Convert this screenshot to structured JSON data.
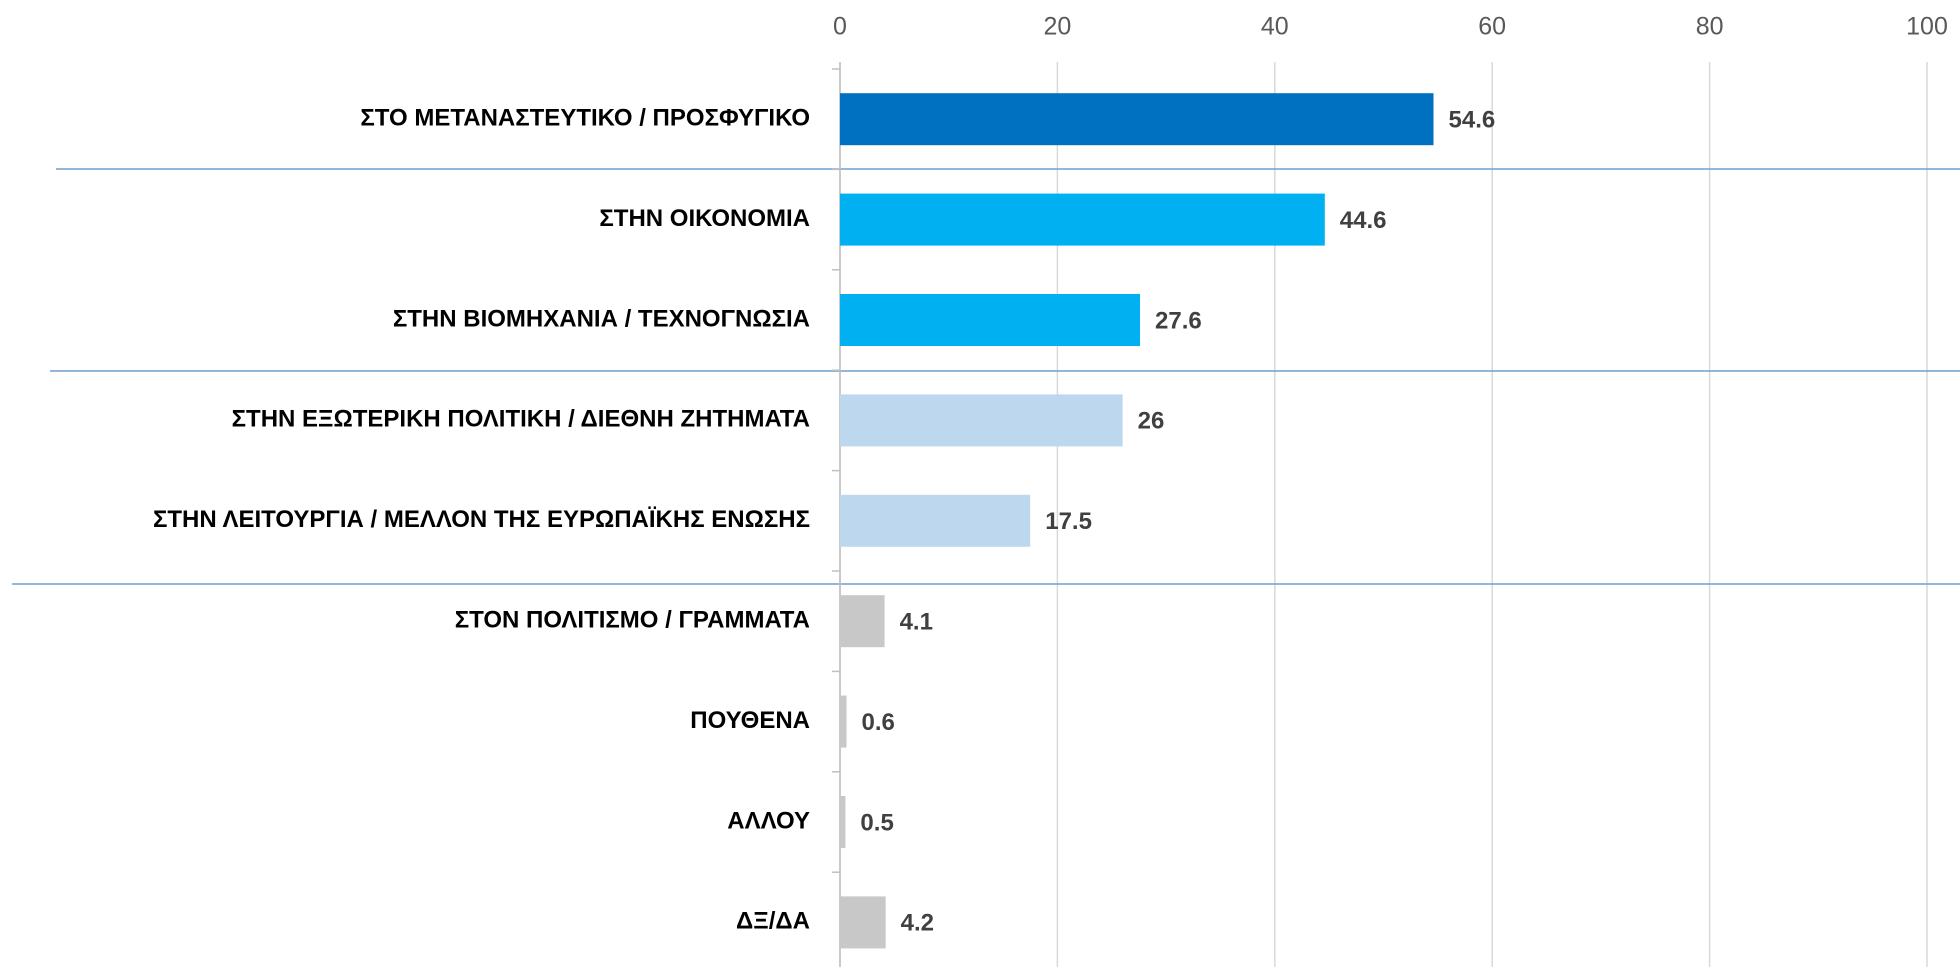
{
  "chart_data": {
    "type": "bar",
    "orientation": "horizontal",
    "categories": [
      "ΣΤΟ ΜΕΤΑΝΑΣΤΕΥΤΙΚΟ / ΠΡΟΣΦΥΓΙΚΟ",
      "ΣΤΗΝ ΟΙΚΟΝΟΜΙΑ",
      "ΣΤΗΝ ΒΙΟΜΗΧΑΝΙΑ / ΤΕΧΝΟΓΝΩΣΙΑ",
      "ΣΤΗΝ ΕΞΩΤΕΡΙΚΗ ΠΟΛΙΤΙΚΗ / ΔΙΕΘΝΗ ΖΗΤΗΜΑΤΑ",
      "ΣΤΗΝ ΛΕΙΤΟΥΡΓΙΑ / ΜΕΛΛΟΝ ΤΗΣ ΕΥΡΩΠΑΪΚΗΣ ΕΝΩΣΗΣ",
      "ΣΤΟΝ ΠΟΛΙΤΙΣΜΟ / ΓΡΑΜΜΑΤΑ",
      "ΠΟΥΘΕΝΑ",
      "ΑΛΛΟΥ",
      "ΔΞ/ΔΑ"
    ],
    "values": [
      54.6,
      44.6,
      27.6,
      26,
      17.5,
      4.1,
      0.6,
      0.5,
      4.2
    ],
    "colors": [
      "#0070c0",
      "#00b0f0",
      "#00b0f0",
      "#bdd7ee",
      "#bdd7ee",
      "#c8c8c8",
      "#c8c8c8",
      "#c8c8c8",
      "#c8c8c8"
    ],
    "xlim": [
      0,
      100
    ],
    "xticks": [
      0,
      20,
      40,
      60,
      80,
      100
    ],
    "grid": true
  }
}
